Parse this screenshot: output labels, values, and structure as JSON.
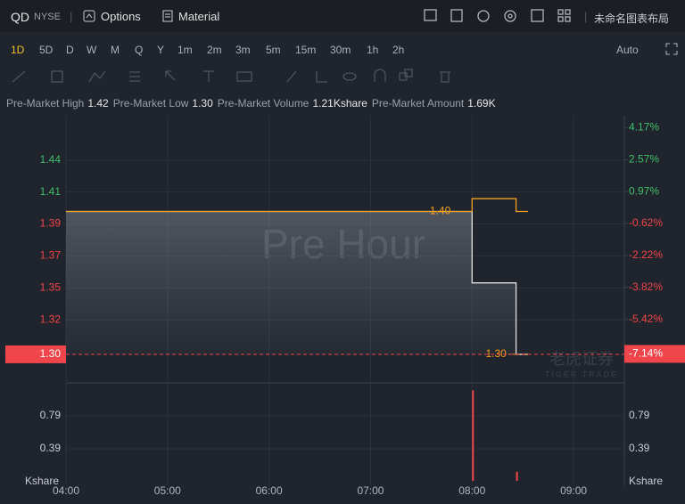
{
  "toolbar": {
    "symbol": "QD",
    "exchange": "NYSE",
    "options": "Options",
    "material": "Material",
    "layout": "未命名图表布局"
  },
  "periods": [
    "1D",
    "5D",
    "D",
    "W",
    "M",
    "Q",
    "Y",
    "1m",
    "2m",
    "3m",
    "5m",
    "15m",
    "30m",
    "1h",
    "2h"
  ],
  "scale_mode": "Auto",
  "stats": [
    {
      "label": "Pre-Market High",
      "value": "1.42"
    },
    {
      "label": "Pre-Market Low",
      "value": "1.30"
    },
    {
      "label": "Pre-Market Volume",
      "value": "1.21Kshare"
    },
    {
      "label": "Pre-Market Amount",
      "value": "1.69K"
    }
  ],
  "chart_data": [
    {
      "type": "line",
      "watermark": "Pre Hour",
      "brand": "老虎证券",
      "brand_sub": "TIGER TRADE",
      "x": [
        "04:00",
        "08:00",
        "08:00",
        "08:26",
        "08:26",
        "08:33"
      ],
      "xlim": [
        "04:00",
        "09:30"
      ],
      "series": [
        {
          "color": "#e0e0e0",
          "values": [
            1.4,
            1.4,
            1.35,
            1.35,
            1.3,
            1.3
          ],
          "area": true
        },
        {
          "color": "#f0a020",
          "values": [
            1.4,
            1.4,
            1.409,
            1.409,
            1.4,
            1.4
          ]
        }
      ],
      "ylim": [
        1.28,
        1.467
      ],
      "yticks": [
        {
          "value": 1.4358,
          "label": "1.44"
        },
        {
          "value": 1.4136,
          "label": "1.41"
        },
        {
          "value": 1.3913,
          "label": "1.39"
        },
        {
          "value": 1.3689,
          "label": "1.37"
        },
        {
          "value": 1.3465,
          "label": "1.35"
        },
        {
          "value": 1.3241,
          "label": "1.32"
        }
      ],
      "y2lim": [
        -8.59,
        4.76
      ],
      "y2ticks": [
        {
          "value": 4.17,
          "label": "4.17%"
        },
        {
          "value": 2.57,
          "label": "2.57%"
        },
        {
          "value": 0.97,
          "label": "0.97%"
        },
        {
          "value": -0.62,
          "label": "-0.62%"
        },
        {
          "value": -2.22,
          "label": "-2.22%"
        },
        {
          "value": -3.82,
          "label": "-3.82%"
        },
        {
          "value": -5.42,
          "label": "-5.42%"
        }
      ],
      "price_tags": [
        {
          "value": 1.4,
          "label": "1.40"
        },
        {
          "value": 1.3,
          "label": "1.30"
        }
      ],
      "last_price": {
        "value": 1.3,
        "label": "1.30"
      },
      "last_change": {
        "value": -7.14,
        "label": "-7.14%"
      },
      "up_color": "#3fbf6b",
      "down_color": "#f0454a",
      "grid": true
    },
    {
      "type": "bar",
      "unit": "Kshare",
      "x": [
        "08:00",
        "08:26"
      ],
      "values": [
        1.1,
        0.11
      ],
      "color": "#f0454a",
      "ylim": [
        0,
        1.19
      ],
      "yticks": [
        0.79,
        0.39
      ],
      "xlim": [
        "04:00",
        "09:30"
      ],
      "xticks": [
        "04:00",
        "05:00",
        "06:00",
        "07:00",
        "08:00",
        "09:00"
      ],
      "grid": true
    }
  ]
}
